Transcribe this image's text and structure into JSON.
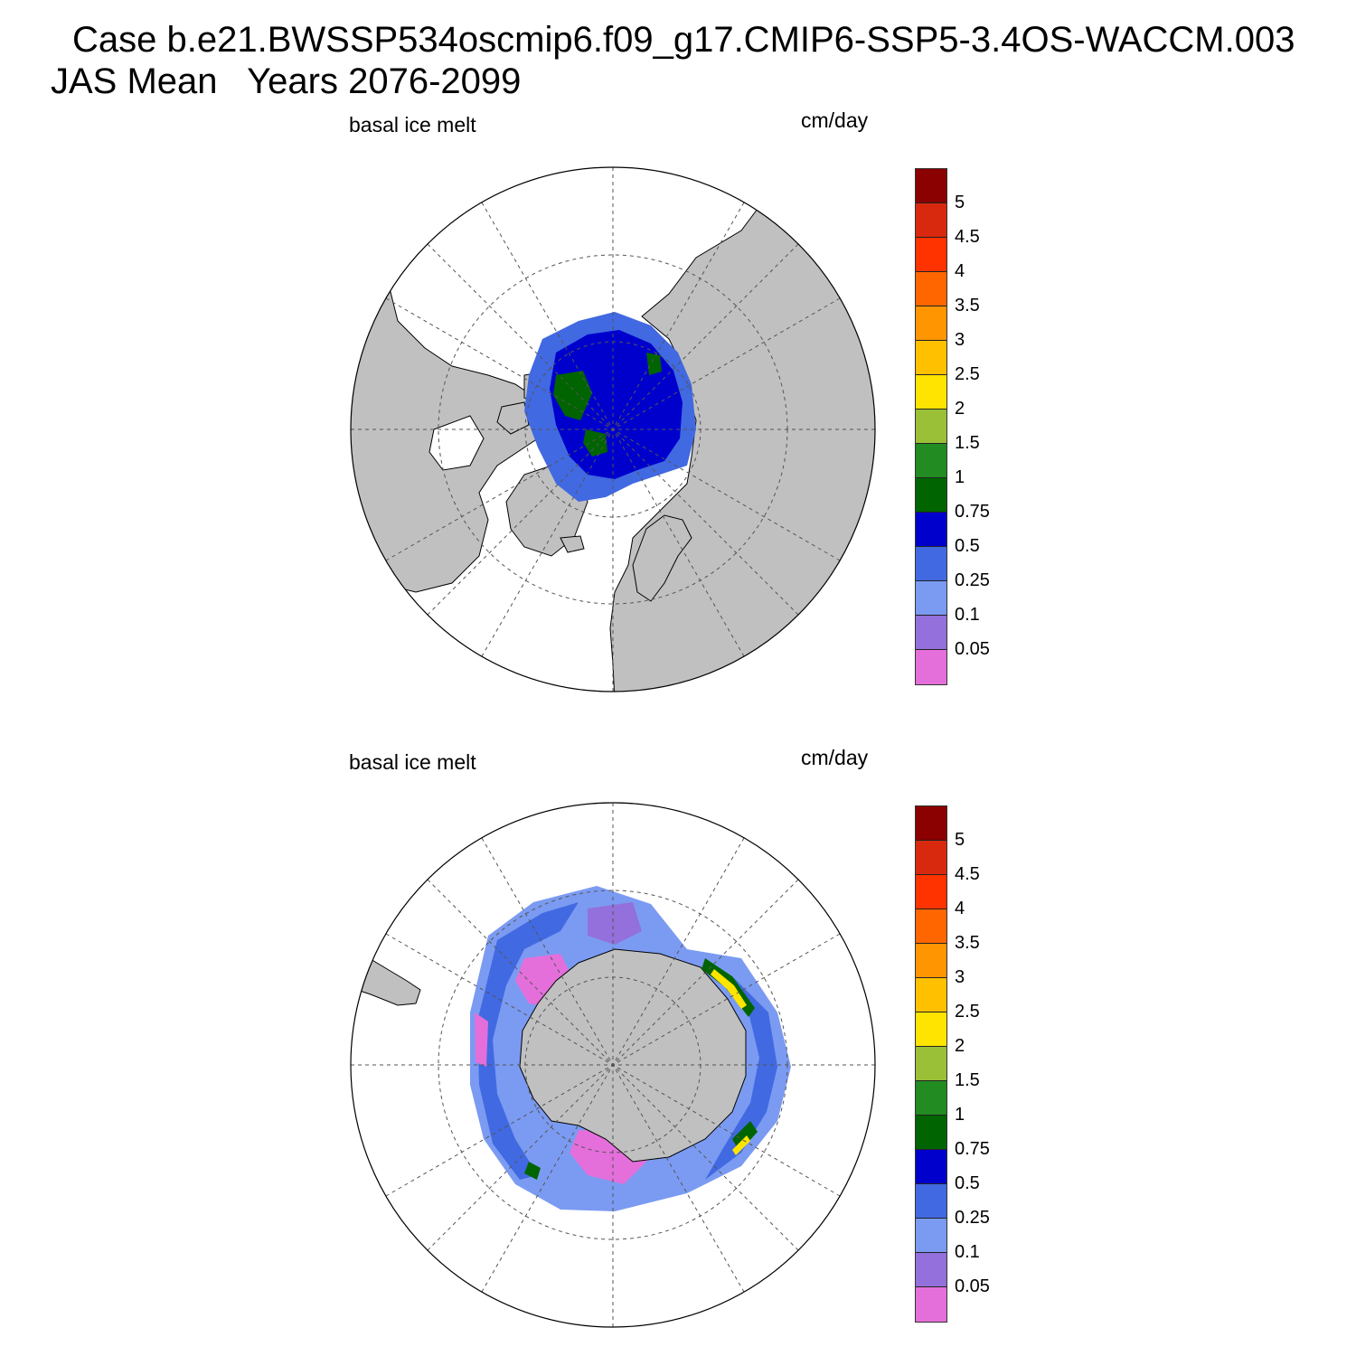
{
  "title": {
    "line1": "Case b.e21.BWSSP534oscmip6.f09_g17.CMIP6-SSP5-3.4OS-WACCM.003",
    "line2": "JAS Mean   Years 2076-2099"
  },
  "panels": [
    {
      "id": "north",
      "hemisphere": "Northern Hemisphere (polar stereographic)",
      "left_label": "basal ice melt",
      "right_label": "cm/day"
    },
    {
      "id": "south",
      "hemisphere": "Southern Hemisphere (polar stereographic)",
      "left_label": "basal ice melt",
      "right_label": "cm/day"
    }
  ],
  "colorbar": {
    "levels": [
      "5",
      "4.5",
      "4",
      "3.5",
      "3",
      "2.5",
      "2",
      "1.5",
      "1",
      "0.75",
      "0.5",
      "0.25",
      "0.1",
      "0.05"
    ],
    "colors": [
      "#8b0000",
      "#d8290f",
      "#ff3300",
      "#ff6600",
      "#ff9500",
      "#ffc000",
      "#ffe400",
      "#9ac038",
      "#228b22",
      "#006400",
      "#0000cd",
      "#4169e1",
      "#7b9bf2",
      "#9370db",
      "#e46fdb"
    ]
  },
  "map_colors": {
    "land": "#c0c0c0",
    "ocean": "#ffffff",
    "coast": "#000000",
    "grid": "#555555"
  }
}
